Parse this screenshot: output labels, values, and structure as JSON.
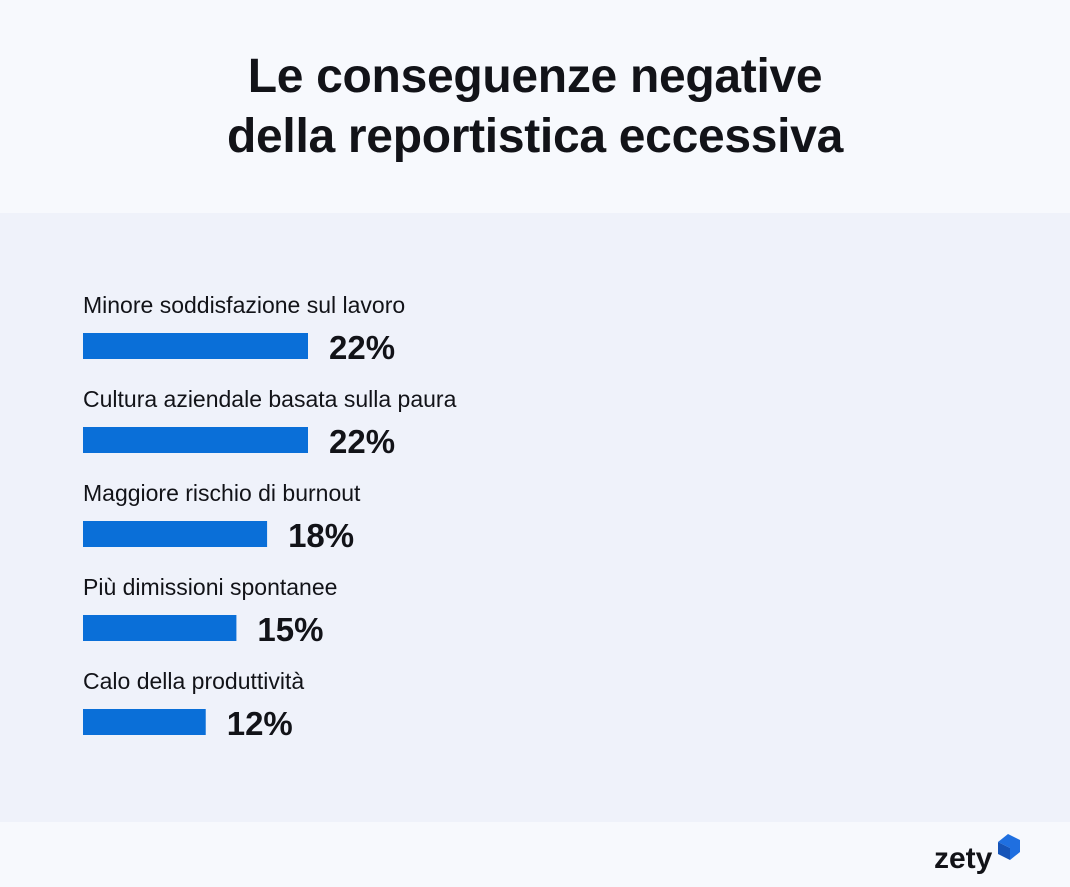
{
  "header": {
    "title_line1": "Le conseguenze negative",
    "title_line2": "della reportistica eccessiva"
  },
  "chart_data": {
    "type": "bar",
    "orientation": "horizontal",
    "categories": [
      "Minore soddisfazione sul lavoro",
      "Cultura aziendale basata sulla paura",
      "Maggiore rischio di burnout",
      "Più dimissioni spontanee",
      "Calo della produttività"
    ],
    "values": [
      22,
      22,
      18,
      15,
      12
    ],
    "value_labels": [
      "22%",
      "22%",
      "18%",
      "15%",
      "12%"
    ],
    "unit": "%",
    "bar_color": "#0a6fd8",
    "grid": false,
    "legend": "none"
  },
  "brand": {
    "logo_text": "zety",
    "logo_color": "#1f6fe0"
  }
}
